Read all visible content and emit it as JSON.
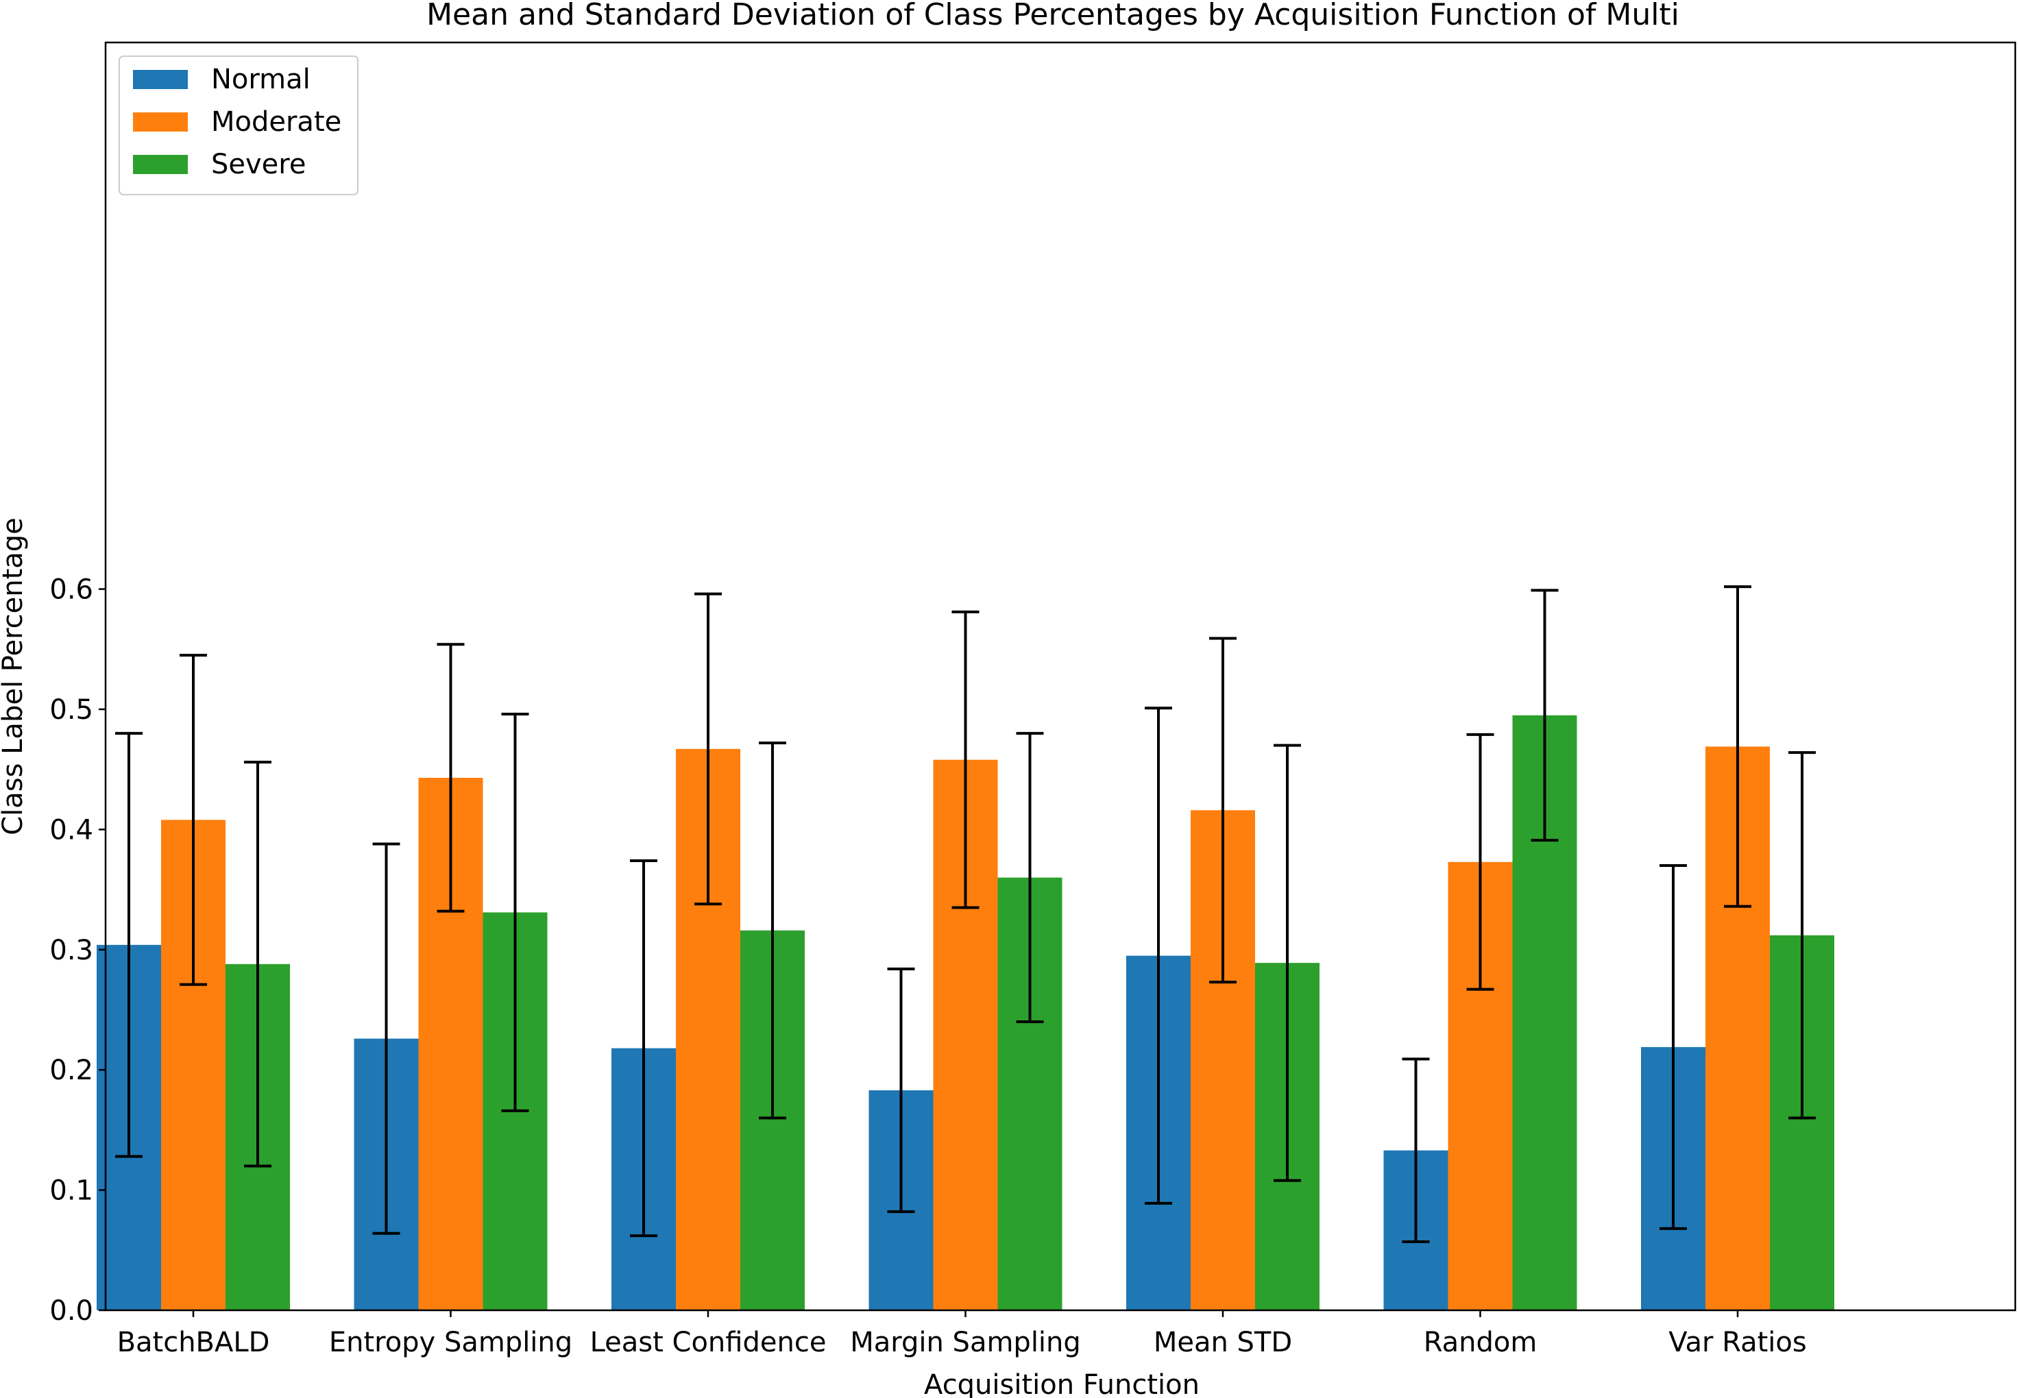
{
  "chart_data": {
    "type": "bar",
    "title": "Mean and Standard Deviation of Class Percentages by Acquisition Function of Multi",
    "xlabel": "Acquisition Function",
    "ylabel": "Class Label Percentage",
    "ylim": [
      0,
      0.63
    ],
    "yticks": [
      "0.0",
      "0.1",
      "0.2",
      "0.3",
      "0.4",
      "0.5",
      "0.6"
    ],
    "ytick_values": [
      0,
      0.1,
      0.2,
      0.3,
      0.4,
      0.5,
      0.6
    ],
    "categories": [
      "BatchBALD",
      "Entropy Sampling",
      "Least Confidence",
      "Margin Sampling",
      "Mean STD",
      "Random",
      "Var Ratios"
    ],
    "series": [
      {
        "name": "Normal",
        "color": "#1f77b4",
        "values": [
          0.304,
          0.226,
          0.218,
          0.183,
          0.295,
          0.133,
          0.219
        ],
        "std": [
          0.176,
          0.162,
          0.156,
          0.101,
          0.206,
          0.076,
          0.151
        ]
      },
      {
        "name": "Moderate",
        "color": "#ff7f0e",
        "values": [
          0.408,
          0.443,
          0.467,
          0.458,
          0.416,
          0.373,
          0.469
        ],
        "std": [
          0.137,
          0.111,
          0.129,
          0.123,
          0.143,
          0.106,
          0.133
        ]
      },
      {
        "name": "Severe",
        "color": "#2ca02c",
        "values": [
          0.288,
          0.331,
          0.316,
          0.36,
          0.289,
          0.495,
          0.312
        ],
        "std": [
          0.168,
          0.165,
          0.156,
          0.12,
          0.181,
          0.104,
          0.152
        ]
      }
    ],
    "grid": false,
    "legend_position": "top-left"
  }
}
